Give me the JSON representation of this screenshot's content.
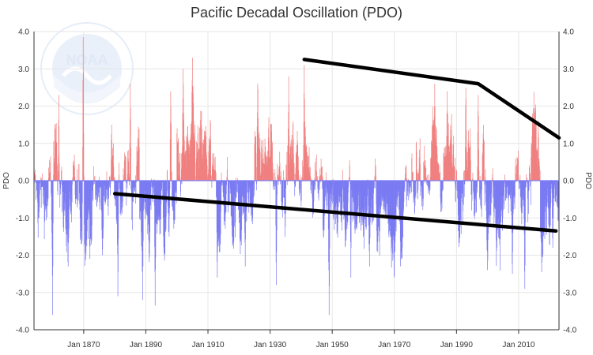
{
  "chart_data": {
    "type": "bar",
    "title": "Pacific Decadal Oscillation (PDO)",
    "ylabel_left": "PDO",
    "ylabel_right": "PDO",
    "ylim": [
      -4,
      4
    ],
    "y_ticks": [
      "4.0",
      "3.0",
      "2.0",
      "1.0",
      "0.0",
      "-1.0",
      "-2.0",
      "-3.0",
      "-4.0"
    ],
    "x_range": [
      1854,
      2023
    ],
    "x_ticks": [
      {
        "year": 1870,
        "label": "Jan 1870"
      },
      {
        "year": 1890,
        "label": "Jan 1890"
      },
      {
        "year": 1910,
        "label": "Jan 1910"
      },
      {
        "year": 1930,
        "label": "Jan 1930"
      },
      {
        "year": 1950,
        "label": "Jan 1950"
      },
      {
        "year": 1970,
        "label": "Jan 1970"
      },
      {
        "year": 1990,
        "label": "Jan 1990"
      },
      {
        "year": 2010,
        "label": "Jan 2010"
      }
    ],
    "colors": {
      "positive": "#f08080",
      "negative": "#7b7bf2",
      "trend": "#000000"
    },
    "grid": true,
    "annotation_lines": [
      {
        "points": [
          [
            1941.0,
            3.25
          ],
          [
            1997.0,
            2.6
          ],
          [
            2023.0,
            1.15
          ]
        ]
      },
      {
        "points": [
          [
            1880.0,
            -0.35
          ],
          [
            2022.0,
            -1.35
          ]
        ]
      }
    ],
    "peaks": [
      {
        "x": 1860.0,
        "y": -3.6
      },
      {
        "x": 1862.0,
        "y": 2.3
      },
      {
        "x": 1865.0,
        "y": -2.3
      },
      {
        "x": 1869.8,
        "y": 3.85
      },
      {
        "x": 1872.0,
        "y": -2.1
      },
      {
        "x": 1876.0,
        "y": -2.0
      },
      {
        "x": 1879.0,
        "y": 1.5
      },
      {
        "x": 1881.0,
        "y": -3.1
      },
      {
        "x": 1885.0,
        "y": 2.6
      },
      {
        "x": 1889.0,
        "y": -3.2
      },
      {
        "x": 1893.0,
        "y": -3.35
      },
      {
        "x": 1898.0,
        "y": 2.4
      },
      {
        "x": 1902.0,
        "y": 3.0
      },
      {
        "x": 1905.0,
        "y": 3.3
      },
      {
        "x": 1913.0,
        "y": -2.6
      },
      {
        "x": 1922.0,
        "y": -2.3
      },
      {
        "x": 1926.0,
        "y": 2.6
      },
      {
        "x": 1932.0,
        "y": -2.8
      },
      {
        "x": 1936.0,
        "y": 2.8
      },
      {
        "x": 1941.0,
        "y": 3.1
      },
      {
        "x": 1949.0,
        "y": -3.6
      },
      {
        "x": 1956.0,
        "y": -2.6
      },
      {
        "x": 1962.0,
        "y": -2.3
      },
      {
        "x": 1972.0,
        "y": -2.3
      },
      {
        "x": 1983.0,
        "y": 2.6
      },
      {
        "x": 1987.0,
        "y": 2.4
      },
      {
        "x": 1993.0,
        "y": 2.5
      },
      {
        "x": 1997.0,
        "y": 2.3
      },
      {
        "x": 2000.0,
        "y": -2.4
      },
      {
        "x": 2008.0,
        "y": -2.5
      },
      {
        "x": 2012.0,
        "y": -2.9
      },
      {
        "x": 2014.5,
        "y": 1.8
      },
      {
        "x": 2021.0,
        "y": -1.8
      }
    ],
    "regime_means": [
      {
        "from": 1854,
        "to": 1860,
        "mean": -0.6
      },
      {
        "from": 1860,
        "to": 1863,
        "mean": 0.5
      },
      {
        "from": 1863,
        "to": 1870,
        "mean": -0.9
      },
      {
        "from": 1870,
        "to": 1878,
        "mean": -0.6
      },
      {
        "from": 1878,
        "to": 1881,
        "mean": 0.4
      },
      {
        "from": 1881,
        "to": 1886,
        "mean": -0.4
      },
      {
        "from": 1886,
        "to": 1888,
        "mean": 0.6
      },
      {
        "from": 1888,
        "to": 1900,
        "mean": -0.8
      },
      {
        "from": 1900,
        "to": 1911,
        "mean": 0.5
      },
      {
        "from": 1911,
        "to": 1925,
        "mean": -0.6
      },
      {
        "from": 1925,
        "to": 1947,
        "mean": 0.5
      },
      {
        "from": 1947,
        "to": 1977,
        "mean": -0.8
      },
      {
        "from": 1977,
        "to": 1999,
        "mean": 0.5
      },
      {
        "from": 1999,
        "to": 2014,
        "mean": -0.7
      },
      {
        "from": 2014,
        "to": 2017,
        "mean": 0.8
      },
      {
        "from": 2017,
        "to": 2023,
        "mean": -0.9
      }
    ]
  },
  "logo": {
    "name": "noaa-logo",
    "letters": "NOAA"
  }
}
